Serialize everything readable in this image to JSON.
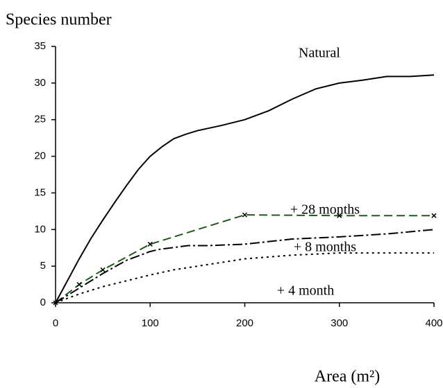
{
  "chart_data": {
    "type": "line",
    "title": "Species number",
    "x_label": "Area (m²)",
    "xlim": [
      0,
      400
    ],
    "xticks": [
      0,
      100,
      200,
      300,
      400
    ],
    "ylim": [
      0,
      35
    ],
    "yticks": [
      0,
      5,
      10,
      15,
      20,
      25,
      30,
      35
    ],
    "series": [
      {
        "name": "Natural",
        "color": "#000000",
        "x": [
          0,
          12.5,
          25,
          37.5,
          50,
          62.5,
          75,
          87.5,
          100,
          112.5,
          125,
          137.5,
          150,
          175,
          200,
          225,
          250,
          275,
          300,
          325,
          350,
          375,
          400
        ],
        "values": [
          0,
          3,
          6,
          8.8,
          11.3,
          13.7,
          16,
          18.2,
          20,
          21.3,
          22.4,
          23,
          23.5,
          24.2,
          25,
          26.2,
          27.8,
          29.2,
          30,
          30.4,
          30.9,
          30.9,
          31.1
        ]
      },
      {
        "name": "+ 28 months",
        "color": "#1e5a1e",
        "x": [
          0,
          25,
          50,
          100,
          200,
          300,
          400
        ],
        "values": [
          0,
          2.5,
          4.5,
          8,
          12,
          11.9,
          11.9
        ]
      },
      {
        "name": "+ 8 months",
        "color": "#000000",
        "x": [
          0,
          25,
          50,
          75,
          100,
          110,
          140,
          160,
          200,
          250,
          300,
          350,
          400
        ],
        "values": [
          0,
          2,
          4,
          5.8,
          7,
          7.3,
          7.8,
          7.8,
          8,
          8.7,
          9,
          9.4,
          10
        ]
      },
      {
        "name": "+ 4 month",
        "color": "#000000",
        "x": [
          0,
          25,
          50,
          75,
          100,
          125,
          150,
          200,
          250,
          300,
          350,
          400
        ],
        "values": [
          0,
          1.2,
          2.2,
          3,
          3.8,
          4.5,
          5,
          6,
          6.5,
          6.8,
          6.8,
          6.8
        ]
      }
    ]
  }
}
